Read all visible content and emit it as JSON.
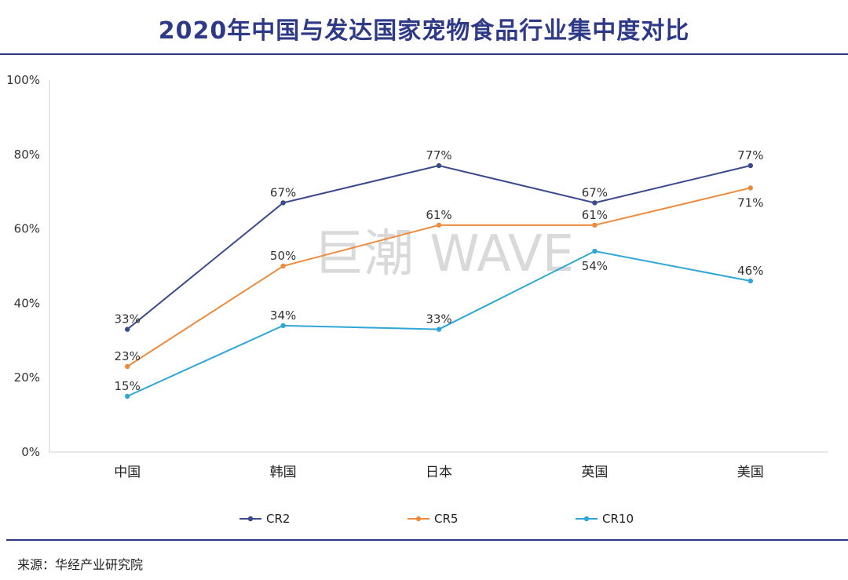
{
  "title": "2020年中国与发达国家宠物食品行业集中度对比",
  "source": "来源：华经产业研究院",
  "watermark": "巨潮 WAVE",
  "colors": {
    "title": "#2E3A87",
    "axis": "#d0d0d0"
  },
  "chart_data": {
    "type": "line",
    "title": "2020年中国与发达国家宠物食品行业集中度对比",
    "categories": [
      "中国",
      "韩国",
      "日本",
      "英国",
      "美国"
    ],
    "series": [
      {
        "name": "CR2",
        "color": "#3B4A8C",
        "values": [
          33,
          67,
          77,
          67,
          77
        ],
        "labels": [
          "33%",
          "67%",
          "77%",
          "67%",
          "77%"
        ]
      },
      {
        "name": "CR5",
        "color": "#ED8B3E",
        "values": [
          23,
          50,
          61,
          61,
          71
        ],
        "labels": [
          "23%",
          "50%",
          "61%",
          "61%",
          "71%"
        ]
      },
      {
        "name": "CR10",
        "color": "#2FA6D6",
        "values": [
          15,
          34,
          33,
          54,
          46
        ],
        "labels": [
          "15%",
          "34%",
          "33%",
          "54%",
          "46%"
        ]
      }
    ],
    "ylim": [
      0,
      100
    ],
    "yticks": [
      "0%",
      "20%",
      "40%",
      "60%",
      "80%",
      "100%"
    ],
    "xlabel": "",
    "ylabel": "",
    "legend": "bottom"
  }
}
